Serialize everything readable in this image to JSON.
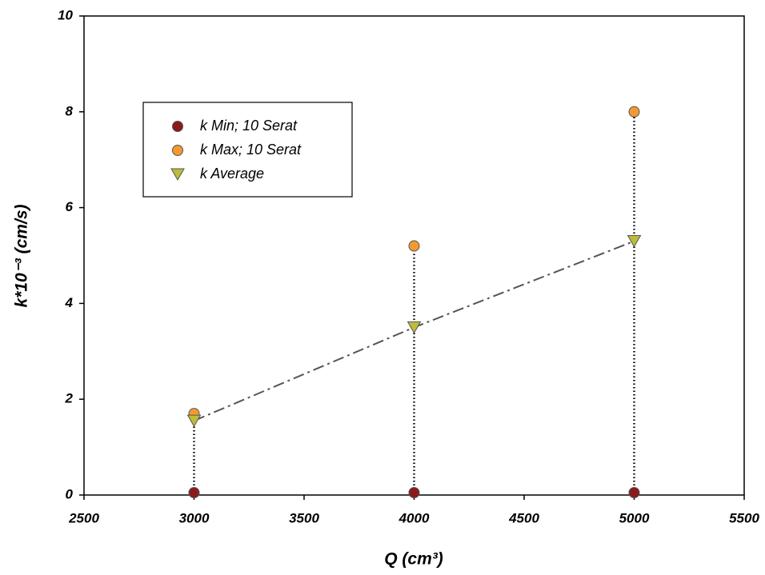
{
  "chart_data": {
    "type": "scatter",
    "x_label": "Q (cm³)",
    "y_label": "k*10⁻³ (cm/s)",
    "x": [
      3000,
      4000,
      5000
    ],
    "series": [
      {
        "name": "k Min; 10 Serat",
        "color": "#8b1a1a",
        "marker": "circle",
        "values": [
          0.05,
          0.05,
          0.05
        ]
      },
      {
        "name": "k Max; 10 Serat",
        "color": "#f39a30",
        "marker": "circle",
        "values": [
          1.7,
          5.2,
          8.0
        ]
      },
      {
        "name": "k Average",
        "color": "#bcbc3a",
        "marker": "triangle-down",
        "line_style": "dashdot",
        "values": [
          1.55,
          3.5,
          5.3
        ]
      }
    ],
    "range_lines": true,
    "xlim": [
      2500,
      5500
    ],
    "xticks": [
      2500,
      3000,
      3500,
      4000,
      4500,
      5000,
      5500
    ],
    "ylim": [
      0,
      10
    ],
    "yticks": [
      0,
      2,
      4,
      6,
      8,
      10
    ]
  }
}
